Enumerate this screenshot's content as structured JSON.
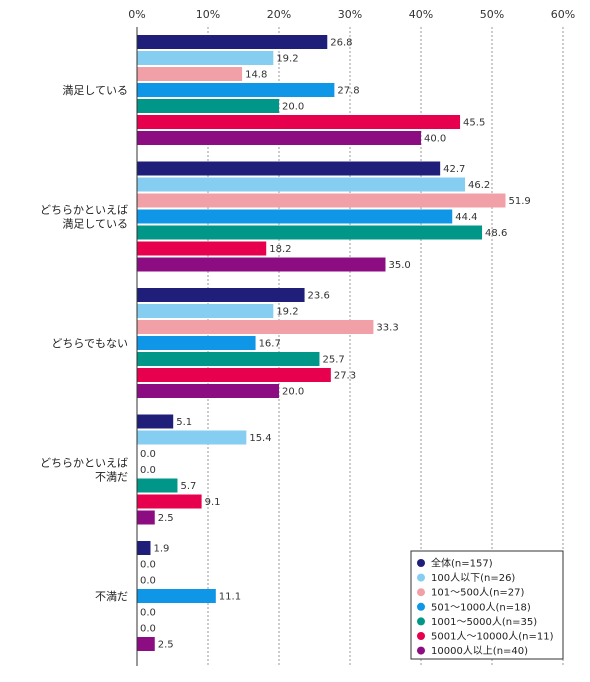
{
  "chart_data": {
    "type": "bar",
    "orientation": "horizontal",
    "xlim": [
      0,
      60
    ],
    "x_ticks": [
      "0%",
      "10%",
      "20%",
      "30%",
      "40%",
      "50%",
      "60%"
    ],
    "grid": "vertical dashed",
    "legend_position": "bottom-right",
    "categories": [
      [
        "満足している"
      ],
      [
        "どちらかといえば",
        "満足している"
      ],
      [
        "どちらでもない"
      ],
      [
        "どちらかといえば",
        "不満だ"
      ],
      [
        "不満だ"
      ]
    ],
    "series": [
      {
        "name": "全体(n=157)",
        "color": "#1f1f7a",
        "values": [
          26.8,
          42.7,
          23.6,
          5.1,
          1.9
        ]
      },
      {
        "name": "100人以下(n=26)",
        "color": "#86cdf2",
        "values": [
          19.2,
          46.2,
          19.2,
          15.4,
          0.0
        ]
      },
      {
        "name": "101〜500人(n=27)",
        "color": "#f2a0a8",
        "values": [
          14.8,
          51.9,
          33.3,
          0.0,
          0.0
        ]
      },
      {
        "name": "501〜1000人(n=18)",
        "color": "#0f96e6",
        "values": [
          27.8,
          44.4,
          16.7,
          0.0,
          11.1
        ]
      },
      {
        "name": "1001〜5000人(n=35)",
        "color": "#009688",
        "values": [
          20.0,
          48.6,
          25.7,
          5.7,
          0.0
        ]
      },
      {
        "name": "5001人〜10000人(n=11)",
        "color": "#e6004d",
        "values": [
          45.5,
          18.2,
          27.3,
          9.1,
          0.0
        ]
      },
      {
        "name": "10000人以上(n=40)",
        "color": "#8c0d82",
        "values": [
          40.0,
          35.0,
          20.0,
          2.5,
          2.5
        ]
      }
    ]
  }
}
